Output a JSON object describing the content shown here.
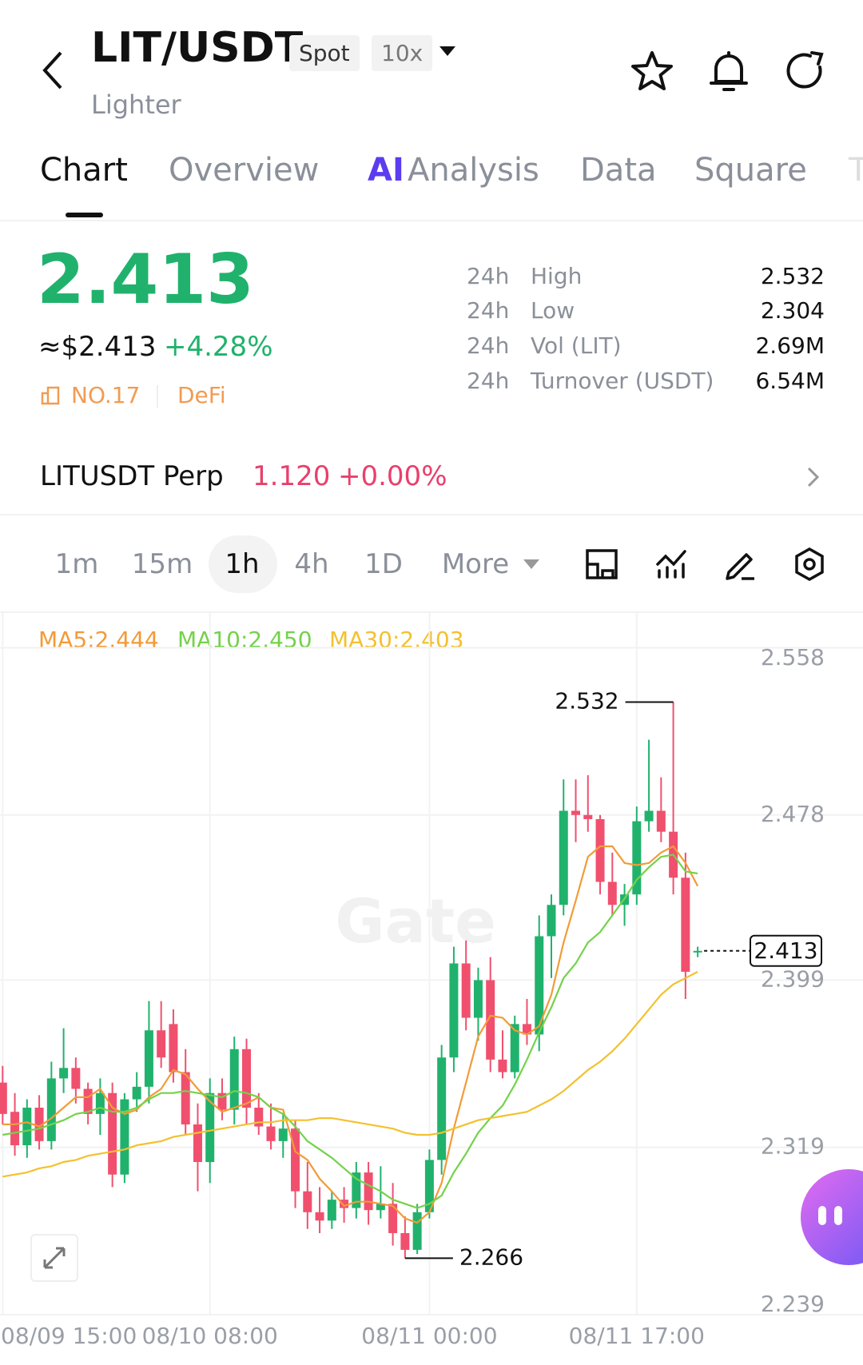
{
  "header": {
    "pair": "LIT/USDT",
    "badges": [
      "Spot",
      "10x"
    ],
    "name": "Lighter"
  },
  "tabs": {
    "items": [
      "Chart",
      "Overview",
      "Analysis",
      "Data",
      "Square",
      "T"
    ],
    "ai_badge": "AI"
  },
  "price": {
    "last": "2.413",
    "fiat": "≈$2.413",
    "change": "+4.28%",
    "rank": "NO.17",
    "sector": "DeFi"
  },
  "stats": [
    [
      "24h",
      "High",
      "2.532"
    ],
    [
      "24h",
      "Low",
      "2.304"
    ],
    [
      "24h",
      "Vol (LIT)",
      "2.69M"
    ],
    [
      "24h",
      "Turnover (USDT)",
      "6.54M"
    ]
  ],
  "perp": {
    "name": "LITUSDT Perp",
    "price": "1.120",
    "change": "+0.00%"
  },
  "intervals": [
    "1m",
    "15m",
    "1h",
    "4h",
    "1D",
    "More"
  ],
  "chart_data": {
    "type": "candlestick",
    "watermark": "Gate",
    "up_color": "#20b26c",
    "down_color": "#f0506e",
    "open": [
      2.35,
      2.336,
      2.32,
      2.338,
      2.322,
      2.352,
      2.357,
      2.347,
      2.335,
      2.345,
      2.306,
      2.342,
      2.348,
      2.375,
      2.378,
      2.355,
      2.33,
      2.312,
      2.345,
      2.337,
      2.366,
      2.338,
      2.329,
      2.322,
      2.328,
      2.298,
      2.288,
      2.284,
      2.294,
      2.29,
      2.307,
      2.289,
      2.292,
      2.278,
      2.27,
      2.288,
      2.313,
      2.362,
      2.407,
      2.381,
      2.399,
      2.361,
      2.355,
      2.378,
      2.373,
      2.42,
      2.435,
      2.48,
      2.478,
      2.476,
      2.446,
      2.435,
      2.44,
      2.475,
      2.48,
      2.47,
      2.448,
      2.413
    ],
    "high": [
      2.358,
      2.345,
      2.342,
      2.344,
      2.36,
      2.376,
      2.362,
      2.35,
      2.352,
      2.35,
      2.345,
      2.355,
      2.389,
      2.389,
      2.385,
      2.366,
      2.34,
      2.352,
      2.352,
      2.372,
      2.371,
      2.345,
      2.34,
      2.335,
      2.332,
      2.312,
      2.3,
      2.298,
      2.3,
      2.312,
      2.312,
      2.31,
      2.302,
      2.286,
      2.292,
      2.318,
      2.368,
      2.415,
      2.418,
      2.405,
      2.41,
      2.375,
      2.382,
      2.39,
      2.43,
      2.44,
      2.495,
      2.495,
      2.497,
      2.478,
      2.46,
      2.445,
      2.482,
      2.514,
      2.496,
      2.532,
      2.46,
      2.415
    ],
    "low": [
      2.33,
      2.315,
      2.314,
      2.318,
      2.318,
      2.345,
      2.34,
      2.33,
      2.325,
      2.3,
      2.302,
      2.336,
      2.34,
      2.357,
      2.35,
      2.325,
      2.298,
      2.302,
      2.332,
      2.33,
      2.33,
      2.325,
      2.318,
      2.314,
      2.29,
      2.28,
      2.278,
      2.28,
      2.283,
      2.285,
      2.282,
      2.285,
      2.272,
      2.266,
      2.268,
      2.285,
      2.306,
      2.355,
      2.375,
      2.37,
      2.355,
      2.352,
      2.352,
      2.368,
      2.365,
      2.4,
      2.43,
      2.465,
      2.47,
      2.44,
      2.43,
      2.425,
      2.435,
      2.47,
      2.465,
      2.44,
      2.39,
      2.41
    ],
    "close": [
      2.335,
      2.32,
      2.338,
      2.322,
      2.352,
      2.357,
      2.347,
      2.335,
      2.345,
      2.306,
      2.342,
      2.348,
      2.375,
      2.362,
      2.355,
      2.33,
      2.312,
      2.345,
      2.337,
      2.366,
      2.338,
      2.329,
      2.322,
      2.328,
      2.298,
      2.288,
      2.284,
      2.294,
      2.29,
      2.307,
      2.289,
      2.292,
      2.278,
      2.27,
      2.288,
      2.313,
      2.362,
      2.407,
      2.381,
      2.399,
      2.361,
      2.355,
      2.378,
      2.373,
      2.42,
      2.435,
      2.48,
      2.478,
      2.476,
      2.446,
      2.435,
      2.44,
      2.475,
      2.48,
      2.47,
      2.448,
      2.403,
      2.413
    ],
    "series": [
      {
        "name": "MA5",
        "legend": "MA5:2.444",
        "color": "#f29b37",
        "values": [
          2.33,
          2.33,
          2.331,
          2.329,
          2.333,
          2.338,
          2.343,
          2.343,
          2.347,
          2.338,
          2.335,
          2.337,
          2.343,
          2.347,
          2.356,
          2.354,
          2.347,
          2.341,
          2.336,
          2.338,
          2.34,
          2.343,
          2.338,
          2.337,
          2.317,
          2.313,
          2.304,
          2.298,
          2.291,
          2.293,
          2.293,
          2.292,
          2.291,
          2.285,
          2.283,
          2.288,
          2.302,
          2.328,
          2.35,
          2.372,
          2.382,
          2.381,
          2.375,
          2.373,
          2.377,
          2.392,
          2.417,
          2.437,
          2.458,
          2.463,
          2.463,
          2.455,
          2.454,
          2.455,
          2.46,
          2.463,
          2.455,
          2.444
        ]
      },
      {
        "name": "MA10",
        "legend": "MA10:2.450",
        "color": "#74d24a",
        "values": [
          2.325,
          2.326,
          2.327,
          2.328,
          2.33,
          2.332,
          2.335,
          2.336,
          2.338,
          2.336,
          2.336,
          2.338,
          2.342,
          2.345,
          2.345,
          2.346,
          2.345,
          2.344,
          2.343,
          2.346,
          2.345,
          2.343,
          2.338,
          2.335,
          2.329,
          2.322,
          2.318,
          2.314,
          2.309,
          2.304,
          2.301,
          2.298,
          2.294,
          2.292,
          2.29,
          2.292,
          2.296,
          2.307,
          2.316,
          2.326,
          2.333,
          2.339,
          2.349,
          2.361,
          2.374,
          2.386,
          2.4,
          2.407,
          2.417,
          2.422,
          2.43,
          2.438,
          2.447,
          2.453,
          2.458,
          2.459,
          2.451,
          2.45
        ]
      },
      {
        "name": "MA30",
        "legend": "MA30:2.403",
        "color": "#f3c12e",
        "values": [
          2.305,
          2.306,
          2.307,
          2.309,
          2.31,
          2.312,
          2.313,
          2.315,
          2.316,
          2.317,
          2.318,
          2.32,
          2.321,
          2.322,
          2.324,
          2.325,
          2.326,
          2.327,
          2.328,
          2.329,
          2.33,
          2.331,
          2.331,
          2.332,
          2.332,
          2.332,
          2.333,
          2.333,
          2.332,
          2.331,
          2.33,
          2.329,
          2.328,
          2.326,
          2.325,
          2.325,
          2.326,
          2.328,
          2.33,
          2.332,
          2.333,
          2.334,
          2.335,
          2.336,
          2.339,
          2.342,
          2.346,
          2.351,
          2.356,
          2.36,
          2.365,
          2.371,
          2.378,
          2.385,
          2.392,
          2.397,
          2.4,
          2.403
        ]
      }
    ],
    "ylim": [
      2.239,
      2.575
    ],
    "yticks": [
      2.239,
      2.319,
      2.399,
      2.478,
      2.558
    ],
    "xticks": [
      {
        "value": 0,
        "label": "08/09 15:00"
      },
      {
        "value": 17,
        "label": "08/10 08:00"
      },
      {
        "value": 35,
        "label": "08/11 00:00"
      },
      {
        "value": 52,
        "label": "08/11 17:00"
      }
    ],
    "annotations": {
      "high": 2.532,
      "low": 2.266,
      "last": 2.413
    },
    "grid": true
  }
}
